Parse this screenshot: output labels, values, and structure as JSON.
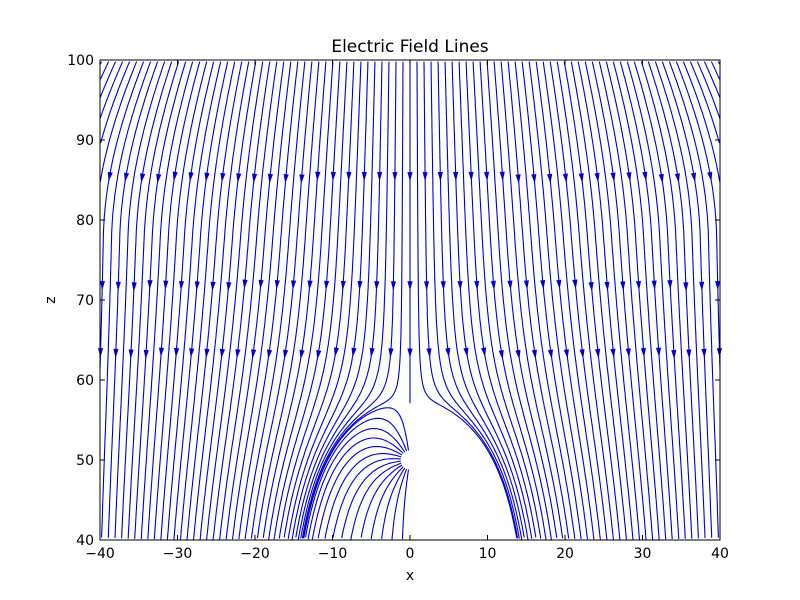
{
  "chart_data": {
    "type": "streamplot",
    "title": "Electric Field Lines",
    "xlabel": "x",
    "ylabel": "z",
    "xlim": [
      -40,
      40
    ],
    "ylim": [
      40,
      100
    ],
    "xticks": [
      -40,
      -30,
      -20,
      -10,
      0,
      10,
      20,
      30,
      40
    ],
    "yticks": [
      40,
      50,
      60,
      70,
      80,
      90,
      100
    ],
    "grid": false,
    "line_color": "#0000cc",
    "field_features": {
      "point_charge": [
        0,
        50
      ],
      "interface_levels_z": [
        85.5,
        72,
        63.5
      ]
    }
  }
}
